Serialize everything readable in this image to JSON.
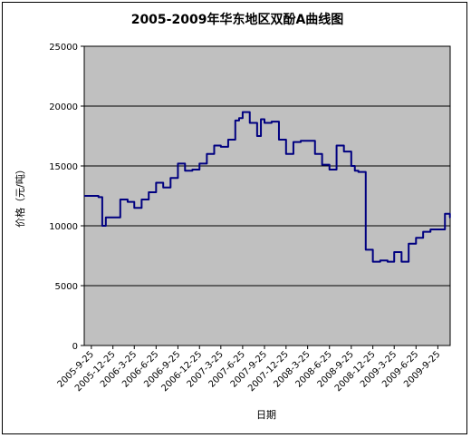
{
  "chart_data": {
    "type": "line",
    "title": "2005-2009年华东地区双酚A曲线图",
    "xlabel": "日期",
    "ylabel": "价格（元/吨）",
    "ylim": [
      0,
      25000
    ],
    "y_ticks": [
      0,
      5000,
      10000,
      15000,
      20000,
      25000
    ],
    "x_tick_labels": [
      "2005-9-25",
      "2005-12-25",
      "2006-3-25",
      "2006-6-25",
      "2006-9-25",
      "2006-12-25",
      "2007-3-25",
      "2007-6-25",
      "2007-9-25",
      "2007-12-25",
      "2008-3-25",
      "2008-6-25",
      "2008-9-25",
      "2008-12-25",
      "2009-3-25",
      "2009-6-25",
      "2009-9-25"
    ],
    "grid": "horizontal",
    "plot_background": "#C0C0C0",
    "line_color": "#000080",
    "series": [
      {
        "x": [
          "2005-9-25",
          "2005-10-25",
          "2005-11-10",
          "2005-11-25",
          "2005-12-25",
          "2006-1-25",
          "2006-2-25",
          "2006-3-25",
          "2006-4-25",
          "2006-5-25",
          "2006-6-25",
          "2006-7-25",
          "2006-8-25",
          "2006-9-25",
          "2006-10-25",
          "2006-11-25",
          "2006-12-25",
          "2007-1-25",
          "2007-2-25",
          "2007-3-25",
          "2007-4-25",
          "2007-5-25",
          "2007-6-10",
          "2007-6-25",
          "2007-7-25",
          "2007-8-25",
          "2007-9-10",
          "2007-9-25",
          "2007-10-25",
          "2007-11-25",
          "2007-12-25",
          "2008-1-25",
          "2008-2-25",
          "2008-3-25",
          "2008-4-25",
          "2008-5-25",
          "2008-6-25",
          "2008-7-25",
          "2008-8-25",
          "2008-9-25",
          "2008-10-10",
          "2008-10-25",
          "2008-11-25",
          "2008-12-25",
          "2009-1-25",
          "2009-2-25",
          "2009-3-25",
          "2009-4-25",
          "2009-5-25",
          "2009-6-25",
          "2009-7-25",
          "2009-8-25",
          "2009-9-25",
          "2009-10-25",
          "2009-11-15"
        ],
        "values": [
          12500,
          12400,
          10000,
          10700,
          10700,
          12200,
          12000,
          11500,
          12200,
          12800,
          13600,
          13200,
          14000,
          15200,
          14600,
          14700,
          15200,
          16000,
          16700,
          16600,
          17200,
          18800,
          19000,
          19500,
          18600,
          17500,
          18900,
          18600,
          18700,
          17200,
          16000,
          17000,
          17100,
          17100,
          16000,
          15100,
          14700,
          16700,
          16200,
          15000,
          14600,
          14500,
          8000,
          7000,
          7100,
          7000,
          7800,
          7000,
          8500,
          9000,
          9500,
          9700,
          9700,
          11000,
          10700
        ]
      }
    ]
  }
}
